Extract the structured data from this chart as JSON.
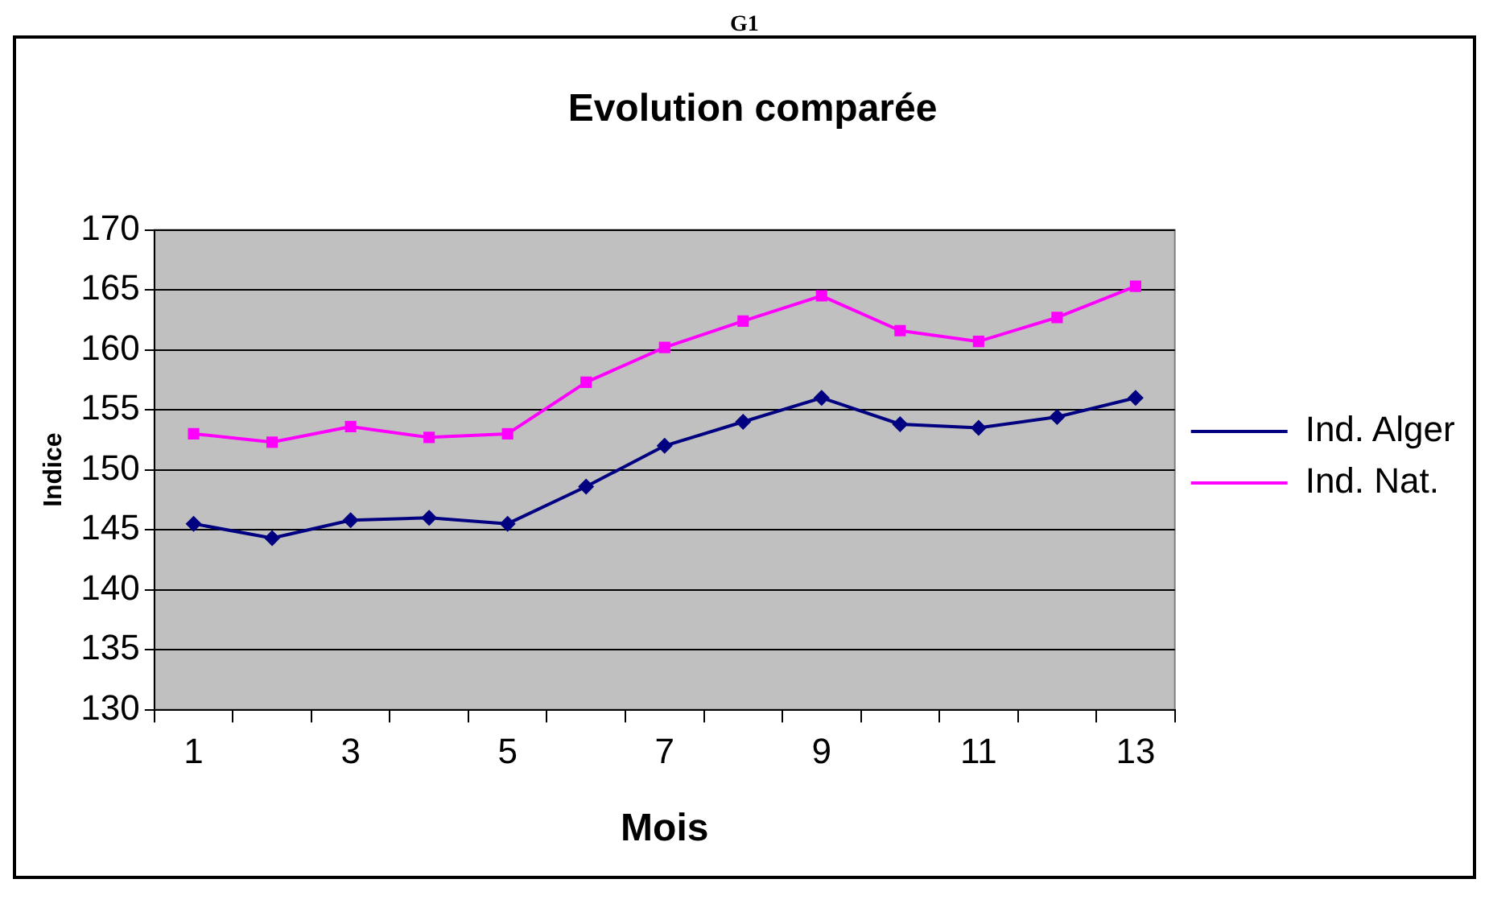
{
  "chart_data": {
    "type": "line",
    "title": "Evolution comparée",
    "xlabel": "Mois",
    "ylabel": "Indice",
    "annotations": [
      "G1"
    ],
    "x": [
      1,
      2,
      3,
      4,
      5,
      6,
      7,
      8,
      9,
      10,
      11,
      12,
      13
    ],
    "series": [
      {
        "name": "Ind. Alger",
        "color": "#000080",
        "marker": "diamond",
        "values": [
          145.5,
          144.3,
          145.8,
          146,
          145.5,
          148.6,
          152,
          154,
          156,
          153.8,
          153.5,
          154.4,
          156
        ]
      },
      {
        "name": "Ind. Nat.",
        "color": "#ff00ff",
        "marker": "square",
        "values": [
          153,
          152.3,
          153.6,
          152.7,
          153,
          157.3,
          160.2,
          162.4,
          164.5,
          161.6,
          160.7,
          162.7,
          165.3
        ]
      }
    ],
    "xlim": [
      0.5,
      13.5
    ],
    "xticks": [
      {
        "value": 0.5,
        "label": null
      },
      1,
      {
        "value": 1.5,
        "label": null
      },
      {
        "value": 2.5,
        "label": null
      },
      3,
      {
        "value": 3.5,
        "label": null
      },
      {
        "value": 4.5,
        "label": null
      },
      5,
      {
        "value": 5.5,
        "label": null
      },
      {
        "value": 6.5,
        "label": null
      },
      7,
      {
        "value": 7.5,
        "label": null
      },
      {
        "value": 8.5,
        "label": null
      },
      9,
      {
        "value": 9.5,
        "label": null
      },
      {
        "value": 10.5,
        "label": null
      },
      11,
      {
        "value": 11.5,
        "label": null
      },
      {
        "value": 12.5,
        "label": null
      },
      13,
      {
        "value": 13.5,
        "label": null
      }
    ],
    "ylim": [
      130,
      170
    ],
    "yticks": [
      130,
      135,
      140,
      145,
      150,
      155,
      160,
      165,
      170
    ],
    "grid": "y",
    "legend": "right",
    "line_style": "solid"
  }
}
